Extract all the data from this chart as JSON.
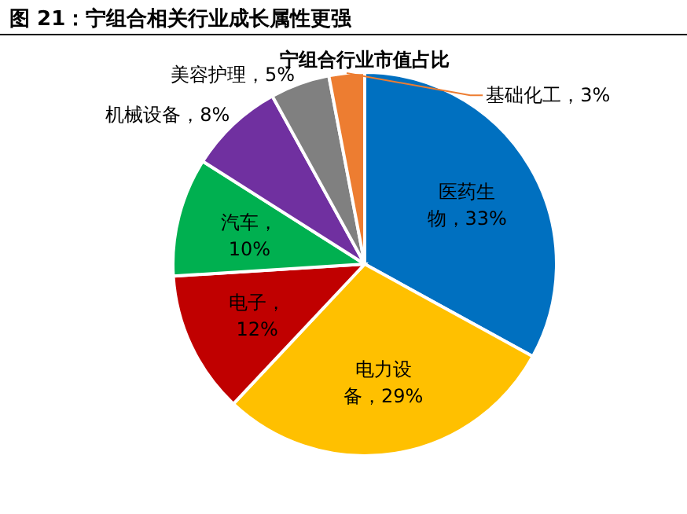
{
  "chart_data": {
    "type": "pie",
    "title": "图 21：宁组合相关行业成长属性更强",
    "subtitle": "宁组合行业市值占比",
    "categories": [
      "医药生物",
      "电力设备",
      "电子",
      "汽车",
      "机械设备",
      "美容护理",
      "基础化工"
    ],
    "values": [
      33,
      29,
      12,
      10,
      8,
      5,
      3
    ],
    "colors": [
      "#0070c0",
      "#ffc000",
      "#c00000",
      "#00b050",
      "#7030a0",
      "#808080",
      "#ed7d31"
    ],
    "value_labels": [
      "，33%",
      "，29%",
      "，12%",
      "，10%",
      "，8%",
      "，5%",
      "，3%"
    ]
  }
}
